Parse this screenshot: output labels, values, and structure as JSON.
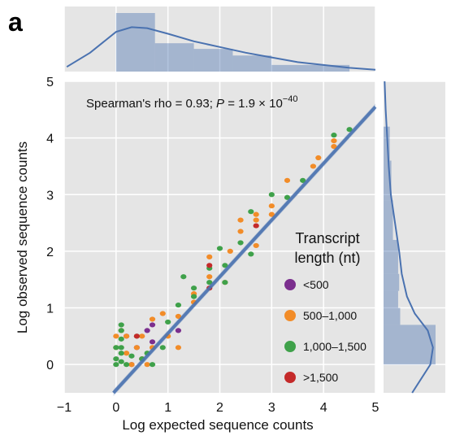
{
  "panel_label": "a",
  "chart_data": {
    "type": "scatter",
    "xlabel": "Log expected sequence counts",
    "ylabel": "Log observed sequence counts",
    "xlim": [
      -1,
      5
    ],
    "ylim": [
      -0.5,
      5
    ],
    "xticks": [
      -1,
      0,
      1,
      2,
      3,
      4,
      5
    ],
    "yticks": [
      0,
      1,
      2,
      3,
      4,
      5
    ],
    "grid": true,
    "annotation": {
      "prefix": "Spearman's rho = 0.93; ",
      "p_symbol": "P",
      "equals": " = 1.9 × 10",
      "exponent": "−40"
    },
    "legend": {
      "title_line1": "Transcript",
      "title_line2": "length (nt)",
      "placement": "right",
      "entries": [
        {
          "label": "<500",
          "color": "#7b2f8e"
        },
        {
          "label": "500–1,000",
          "color": "#f28c28"
        },
        {
          "label": "1,000–1,500",
          "color": "#3fa14a"
        },
        {
          "label": ">1,500",
          "color": "#c42a2a"
        }
      ]
    },
    "regression": {
      "slope": 1.0,
      "intercept": -0.45,
      "color": "#4a72b0"
    },
    "series": [
      {
        "name": "<500",
        "color": "#7b2f8e",
        "points": [
          [
            0.3,
            0.0
          ],
          [
            0.4,
            0.3
          ],
          [
            0.6,
            0.6
          ],
          [
            0.7,
            0.7
          ],
          [
            0.7,
            0.4
          ],
          [
            1.2,
            0.6
          ],
          [
            0.5,
            0.1
          ],
          [
            0.2,
            0.5
          ]
        ]
      },
      {
        "name": "500–1,000",
        "color": "#f28c28",
        "points": [
          [
            0.0,
            0.3
          ],
          [
            0.0,
            0.5
          ],
          [
            0.1,
            0.6
          ],
          [
            0.2,
            0.5
          ],
          [
            0.2,
            0.2
          ],
          [
            0.3,
            0.0
          ],
          [
            0.4,
            0.3
          ],
          [
            0.5,
            0.5
          ],
          [
            0.5,
            0.1
          ],
          [
            0.6,
            0.0
          ],
          [
            0.7,
            0.3
          ],
          [
            0.7,
            0.8
          ],
          [
            0.9,
            0.9
          ],
          [
            1.0,
            0.5
          ],
          [
            1.2,
            0.85
          ],
          [
            1.2,
            0.3
          ],
          [
            1.5,
            1.1
          ],
          [
            1.5,
            1.25
          ],
          [
            1.8,
            1.55
          ],
          [
            1.8,
            1.9
          ],
          [
            2.1,
            1.45
          ],
          [
            2.2,
            2.0
          ],
          [
            2.4,
            2.35
          ],
          [
            2.4,
            2.55
          ],
          [
            2.7,
            2.1
          ],
          [
            2.7,
            2.55
          ],
          [
            2.7,
            2.65
          ],
          [
            3.0,
            2.65
          ],
          [
            3.0,
            2.8
          ],
          [
            3.3,
            3.25
          ],
          [
            3.8,
            3.5
          ],
          [
            3.9,
            3.65
          ],
          [
            4.2,
            3.85
          ],
          [
            4.2,
            3.95
          ]
        ]
      },
      {
        "name": "1,000–1,500",
        "color": "#3fa14a",
        "points": [
          [
            0.0,
            0.0
          ],
          [
            0.0,
            0.3
          ],
          [
            0.0,
            0.1
          ],
          [
            0.1,
            0.2
          ],
          [
            0.1,
            0.45
          ],
          [
            0.1,
            0.3
          ],
          [
            0.1,
            0.05
          ],
          [
            0.2,
            0.0
          ],
          [
            0.3,
            0.15
          ],
          [
            0.4,
            0.5
          ],
          [
            0.5,
            0.1
          ],
          [
            0.6,
            0.2
          ],
          [
            0.7,
            0.0
          ],
          [
            0.1,
            0.7
          ],
          [
            0.1,
            0.6
          ],
          [
            0.9,
            0.3
          ],
          [
            1.0,
            0.75
          ],
          [
            1.2,
            1.05
          ],
          [
            1.3,
            1.55
          ],
          [
            1.5,
            1.2
          ],
          [
            1.5,
            1.35
          ],
          [
            1.8,
            1.45
          ],
          [
            1.8,
            1.7
          ],
          [
            2.0,
            2.05
          ],
          [
            2.1,
            1.75
          ],
          [
            2.1,
            1.45
          ],
          [
            2.4,
            2.15
          ],
          [
            2.6,
            2.7
          ],
          [
            2.6,
            1.95
          ],
          [
            3.0,
            3.0
          ],
          [
            3.3,
            2.95
          ],
          [
            3.6,
            3.25
          ],
          [
            4.2,
            4.05
          ],
          [
            4.5,
            4.15
          ]
        ]
      },
      {
        "name": ">1,500",
        "color": "#c42a2a",
        "points": [
          [
            0.4,
            0.5
          ],
          [
            1.8,
            1.35
          ],
          [
            1.8,
            1.75
          ],
          [
            2.7,
            2.45
          ]
        ]
      }
    ],
    "top_histogram": {
      "bin_edges": [
        0,
        0.75,
        1.5,
        2.25,
        3.0,
        4.5
      ],
      "density": [
        0.62,
        0.3,
        0.24,
        0.17,
        0.07
      ],
      "kde_x": [
        -0.95,
        -0.5,
        0.0,
        0.3,
        0.6,
        1.0,
        1.5,
        2.0,
        2.5,
        3.0,
        3.5,
        4.0,
        4.5,
        5.0
      ],
      "kde_y": [
        0.05,
        0.2,
        0.42,
        0.47,
        0.46,
        0.4,
        0.32,
        0.26,
        0.2,
        0.15,
        0.1,
        0.07,
        0.04,
        0.02
      ]
    },
    "right_histogram": {
      "bin_edges": [
        0.0,
        0.7,
        1.0,
        1.3,
        1.6,
        2.2,
        2.9,
        3.6,
        4.2
      ],
      "density": [
        1.0,
        0.32,
        0.28,
        0.3,
        0.28,
        0.18,
        0.15,
        0.12
      ],
      "kde_y": [
        -0.5,
        0.0,
        0.3,
        0.6,
        0.9,
        1.2,
        1.6,
        2.0,
        2.5,
        3.0,
        3.5,
        4.0,
        4.5,
        5.0
      ],
      "kde_x": [
        0.55,
        0.9,
        0.95,
        0.85,
        0.6,
        0.45,
        0.35,
        0.3,
        0.22,
        0.14,
        0.1,
        0.07,
        0.04,
        0.02
      ]
    }
  }
}
